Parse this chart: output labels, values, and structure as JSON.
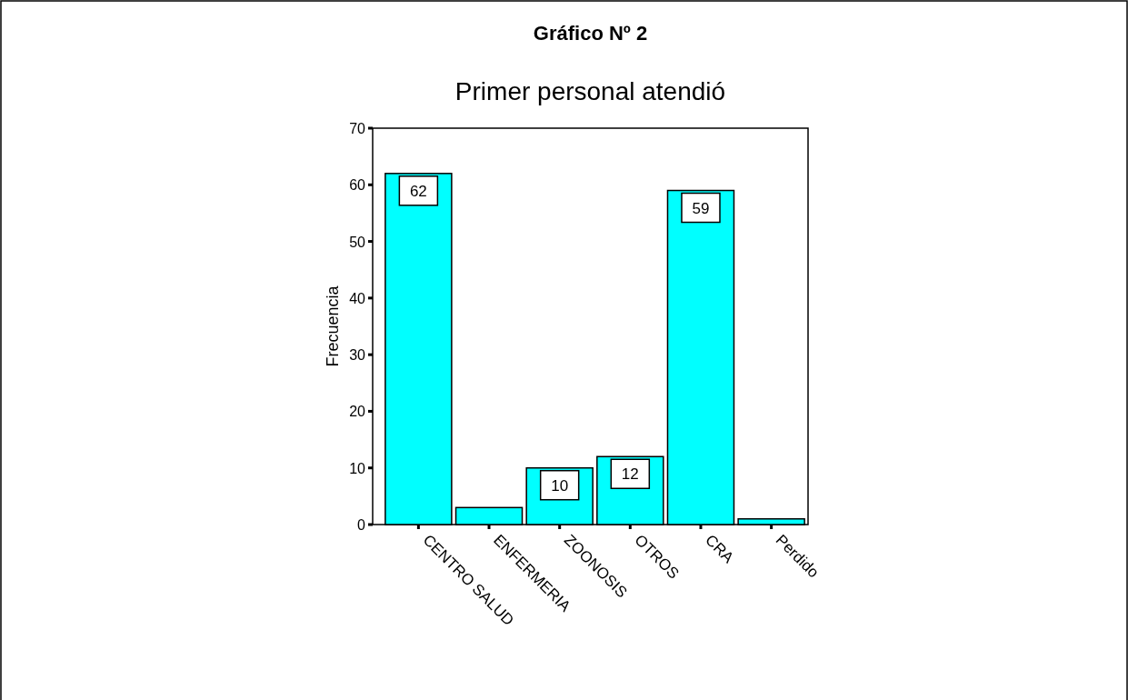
{
  "chart_data": {
    "type": "bar",
    "title": "Gráfico Nº 2",
    "subtitle": "Primer personal atendió",
    "ylabel": "Frecuencia",
    "categories": [
      "CENTRO SALUD",
      "ENFERMERIA",
      "ZOONOSIS",
      "OTROS",
      "CRA",
      "Perdido"
    ],
    "values": [
      62,
      3,
      10,
      12,
      59,
      1
    ],
    "value_labels": [
      "62",
      null,
      "10",
      "12",
      "59",
      null
    ],
    "color": "#00ffff",
    "ylim": [
      0,
      70
    ],
    "yticks": [
      0,
      10,
      20,
      30,
      40,
      50,
      60,
      70
    ],
    "grid": false
  }
}
